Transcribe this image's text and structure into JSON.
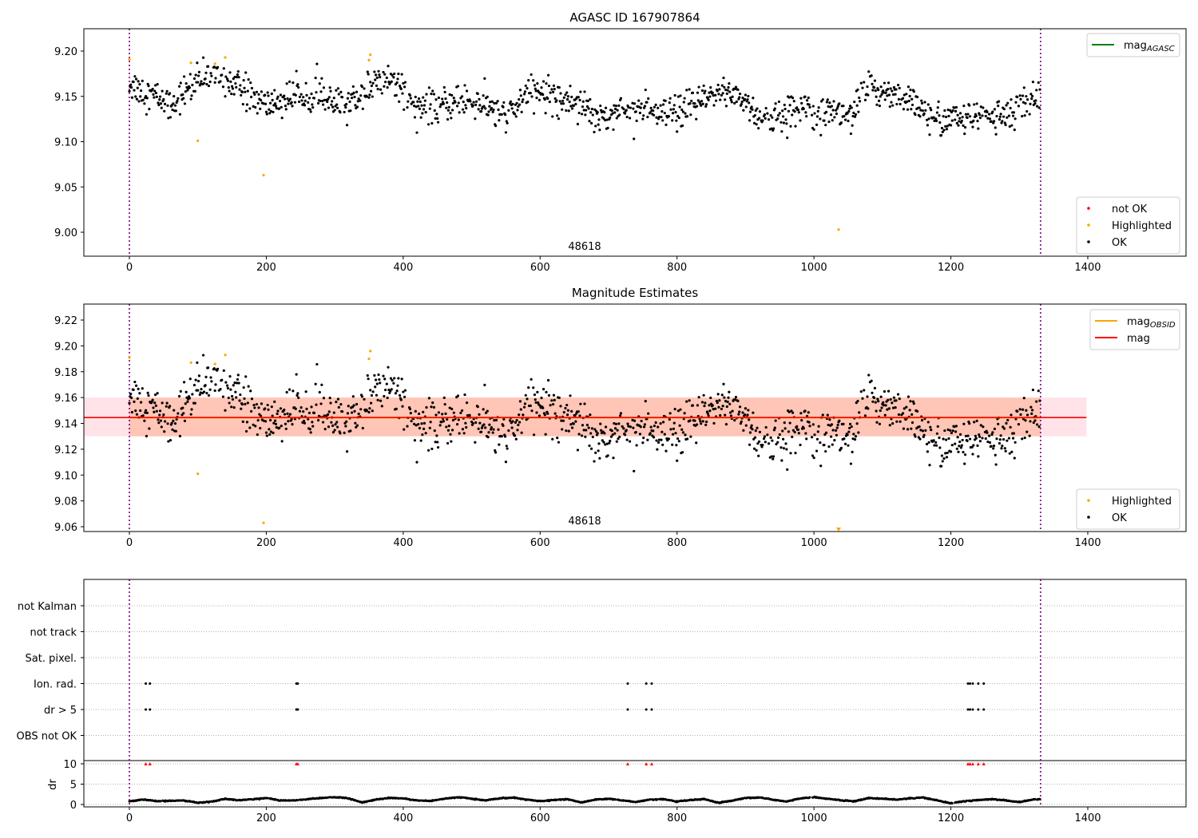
{
  "chart_data": [
    {
      "type": "scatter",
      "title": "AGASC ID 167907864",
      "xlim": [
        -66.5,
        1543.5
      ],
      "ylim": [
        8.9736,
        9.2247
      ],
      "xticks": [
        "0",
        "200",
        "400",
        "600",
        "800",
        "1000",
        "1200",
        "1400"
      ],
      "xtick_values": [
        0,
        200,
        400,
        600,
        800,
        1000,
        1200,
        1400
      ],
      "yticks": [
        "9.00",
        "9.05",
        "9.10",
        "9.15",
        "9.20"
      ],
      "ytick_values": [
        9.0,
        9.05,
        9.1,
        9.15,
        9.2
      ],
      "annotation": "48618",
      "annotation_x": 665,
      "vlines_x": [
        0,
        1331
      ],
      "legend_upper": {
        "placement": "top-right",
        "items": [
          {
            "label": "mag",
            "sub": "AGASC",
            "color": "#008000"
          }
        ]
      },
      "legend_lower": {
        "placement": "bottom-right",
        "items": [
          {
            "label": "not OK",
            "color": "#ff0000"
          },
          {
            "label": "Highlighted",
            "color": "#ffa500"
          },
          {
            "label": "OK",
            "color": "#000000"
          }
        ]
      },
      "series_ok": {
        "x_range": [
          0,
          1330
        ],
        "noise_sd": 0.009,
        "trend_step": 20,
        "trend": [
          9.165,
          9.155,
          9.15,
          9.14,
          9.155,
          9.165,
          9.175,
          9.17,
          9.16,
          9.15,
          9.14,
          9.145,
          9.15,
          9.155,
          9.15,
          9.14,
          9.14,
          9.155,
          9.165,
          9.17,
          9.16,
          9.14,
          9.135,
          9.14,
          9.145,
          9.145,
          9.14,
          9.13,
          9.13,
          9.155,
          9.155,
          9.15,
          9.145,
          9.145,
          9.13,
          9.13,
          9.135,
          9.14,
          9.13,
          9.13,
          9.13,
          9.14,
          9.145,
          9.155,
          9.155,
          9.145,
          9.125,
          9.125,
          9.13,
          9.14,
          9.14,
          9.135,
          9.13,
          9.135,
          9.16,
          9.155,
          9.155,
          9.145,
          9.13,
          9.125,
          9.125,
          9.125,
          9.13,
          9.13,
          9.13,
          9.135,
          9.15,
          9.16
        ]
      },
      "series_highlighted": {
        "x": [
          0,
          90,
          100,
          125,
          140,
          196,
          350,
          352,
          1036
        ],
        "y": [
          9.191,
          9.187,
          9.101,
          9.186,
          9.193,
          9.063,
          9.19,
          9.196,
          9.003
        ]
      }
    },
    {
      "type": "scatter",
      "title": "Magnitude Estimates",
      "xlim": [
        -66.5,
        1543.5
      ],
      "ylim": [
        9.0563,
        9.2324
      ],
      "xticks": [
        "0",
        "200",
        "400",
        "600",
        "800",
        "1000",
        "1200",
        "1400"
      ],
      "xtick_values": [
        0,
        200,
        400,
        600,
        800,
        1000,
        1200,
        1400
      ],
      "yticks": [
        "9.06",
        "9.08",
        "9.10",
        "9.12",
        "9.14",
        "9.16",
        "9.18",
        "9.20",
        "9.22"
      ],
      "ytick_values": [
        9.06,
        9.08,
        9.1,
        9.12,
        9.14,
        9.16,
        9.18,
        9.2,
        9.22
      ],
      "annotation": "48618",
      "annotation_x": 665,
      "mag": 9.1445,
      "mag_band": [
        9.13,
        9.16
      ],
      "mag_x_range": [
        -66.5,
        1398
      ],
      "mag_obsid": 9.1445,
      "mag_obsid_band": [
        9.13,
        9.16
      ],
      "mag_obsid_x_range": [
        0,
        1331
      ],
      "colors": {
        "mag": "#ff0000",
        "mag_band": "#ffc0cb",
        "mag_obsid": "#ffa500",
        "mag_obsid_band": "#ffa07a"
      },
      "legend_upper": {
        "placement": "top-right",
        "items": [
          {
            "label": "mag",
            "sub": "OBSID",
            "color": "#ffa500"
          },
          {
            "label": "mag",
            "sub": "",
            "color": "#ff0000"
          }
        ]
      },
      "legend_lower": {
        "placement": "bottom-right",
        "items": [
          {
            "label": "Highlighted",
            "color": "#ffa500"
          },
          {
            "label": "OK",
            "color": "#000000"
          }
        ]
      }
    },
    {
      "type": "scatter",
      "title": "",
      "flag_labels": [
        "not Kalman",
        "not track",
        "Sat. pixel.",
        "Ion. rad.",
        "dr > 5",
        "OBS not OK"
      ],
      "flag_points": {
        "Ion. rad.": [
          24,
          30,
          244,
          246,
          728,
          755,
          763,
          1225,
          1228,
          1232,
          1240,
          1248
        ],
        "dr > 5": [
          24,
          30,
          244,
          246,
          728,
          755,
          763,
          1225,
          1228,
          1232,
          1240,
          1248
        ]
      },
      "ylabel": "dr",
      "dr_ylim": [
        -0.6,
        10.8
      ],
      "dr_yticks": [
        "0",
        "5",
        "10"
      ],
      "dr_ytick_values": [
        0,
        5,
        10
      ],
      "dr_outliers_x": [
        24,
        30,
        244,
        246,
        728,
        755,
        763,
        1225,
        1228,
        1232,
        1240,
        1248
      ],
      "dr_outlier_value": 10,
      "dr_trend_step": 20,
      "dr_trend": [
        0.8,
        1.2,
        0.8,
        0.9,
        1.0,
        0.4,
        0.7,
        1.4,
        1.0,
        1.3,
        1.6,
        1.0,
        1.0,
        1.3,
        1.6,
        1.8,
        1.5,
        0.5,
        1.2,
        1.6,
        1.5,
        1.0,
        0.9,
        1.4,
        1.8,
        1.4,
        1.0,
        1.5,
        1.7,
        1.2,
        0.8,
        1.1,
        1.3,
        0.5,
        1.2,
        1.4,
        1.0,
        0.6,
        1.2,
        1.3,
        0.7,
        1.1,
        1.3,
        0.4,
        0.9,
        1.6,
        1.7,
        1.2,
        0.7,
        1.5,
        1.8,
        1.4,
        1.0,
        0.8,
        1.6,
        1.4,
        1.2,
        1.5,
        1.7,
        1.0,
        0.3,
        0.8,
        1.1,
        1.3,
        1.0,
        0.6,
        1.2,
        1.4
      ],
      "xticks": [
        "0",
        "200",
        "400",
        "600",
        "800",
        "1000",
        "1200",
        "1400"
      ],
      "xtick_values": [
        0,
        200,
        400,
        600,
        800,
        1000,
        1200,
        1400
      ]
    }
  ]
}
